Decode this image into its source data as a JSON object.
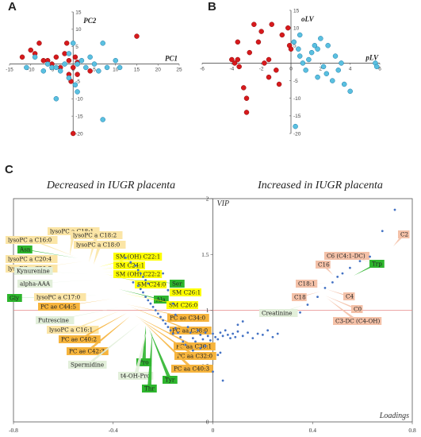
{
  "panels": {
    "a": "A",
    "b": "B",
    "c": "C"
  },
  "colors": {
    "red": "#d7191c",
    "blue": "#5ac0e0",
    "blueStroke": "#1b7aa8",
    "dot": "#4472c4",
    "refline": "#e68a8a",
    "lightyellow": "#fbe5a6",
    "yellow": "#ffff00",
    "orange": "#f6b43d",
    "green": "#2db52d",
    "pale": "#e2efda",
    "salmon": "#f4c1a8"
  },
  "chart_data": [
    {
      "type": "scatter",
      "panel": "A",
      "xlabel": "PC1",
      "ylabel": "PC2",
      "xlim": [
        -15,
        25
      ],
      "ylim": [
        -20,
        15
      ],
      "xticks": [
        -15,
        -10,
        -5,
        0,
        5,
        10,
        15,
        20,
        25
      ],
      "yticks": [
        -20,
        -15,
        -10,
        -5,
        0,
        5,
        10,
        15
      ],
      "series": [
        {
          "color": "red",
          "points": [
            [
              -12,
              2
            ],
            [
              -10,
              4
            ],
            [
              -9,
              3
            ],
            [
              -8,
              6
            ],
            [
              -7,
              1
            ],
            [
              -6,
              1
            ],
            [
              -5,
              0
            ],
            [
              -4,
              2
            ],
            [
              -3,
              -1
            ],
            [
              -2,
              3
            ],
            [
              -1.5,
              6
            ],
            [
              -1,
              1
            ],
            [
              -1,
              -3
            ],
            [
              -0.5,
              -5
            ],
            [
              0,
              -1
            ],
            [
              0,
              -20
            ],
            [
              0.5,
              2
            ],
            [
              1,
              -3
            ],
            [
              1,
              0.5
            ],
            [
              4,
              -2
            ],
            [
              15,
              8
            ]
          ]
        },
        {
          "color": "blue",
          "points": [
            [
              -11,
              -1
            ],
            [
              -9,
              2
            ],
            [
              -7,
              -2
            ],
            [
              -6,
              0
            ],
            [
              -5,
              -1
            ],
            [
              -4,
              -1
            ],
            [
              -3,
              -2
            ],
            [
              -2,
              0
            ],
            [
              -1,
              -4
            ],
            [
              -1,
              3
            ],
            [
              0,
              6
            ],
            [
              0.5,
              -6
            ],
            [
              1,
              -8
            ],
            [
              1,
              0
            ],
            [
              2,
              1
            ],
            [
              3,
              -1
            ],
            [
              4,
              2
            ],
            [
              5,
              0
            ],
            [
              6,
              -2
            ],
            [
              7,
              6
            ],
            [
              7,
              -16
            ],
            [
              8,
              -1
            ],
            [
              10,
              1
            ],
            [
              11,
              -1
            ],
            [
              -4,
              -10
            ]
          ]
        }
      ]
    },
    {
      "type": "scatter",
      "panel": "B",
      "xlabel": "pLV",
      "ylabel": "oLV",
      "xlim": [
        -6,
        6
      ],
      "ylim": [
        -20,
        15
      ],
      "xticks": [
        -6,
        -4,
        -2,
        0,
        2,
        4,
        6
      ],
      "yticks": [
        -20,
        -15,
        -10,
        -5,
        0,
        5,
        10,
        15
      ],
      "series": [
        {
          "color": "red",
          "points": [
            [
              -4,
              1
            ],
            [
              -3.8,
              0
            ],
            [
              -3.6,
              1
            ],
            [
              -3.5,
              -1
            ],
            [
              -3.2,
              -7
            ],
            [
              -3,
              -10
            ],
            [
              -3,
              -14
            ],
            [
              -2.8,
              3
            ],
            [
              -2.5,
              11
            ],
            [
              -2.2,
              6
            ],
            [
              -2,
              9
            ],
            [
              -1.8,
              0
            ],
            [
              -1.5,
              1
            ],
            [
              -1.5,
              -4
            ],
            [
              -1.3,
              11
            ],
            [
              -1,
              -2
            ],
            [
              -0.8,
              -6
            ],
            [
              -0.6,
              8
            ],
            [
              -0.2,
              10
            ],
            [
              -0.1,
              5
            ],
            [
              0,
              4
            ],
            [
              -3.6,
              6
            ]
          ]
        },
        {
          "color": "blue",
          "points": [
            [
              0.2,
              6
            ],
            [
              0.5,
              4
            ],
            [
              0.6,
              2
            ],
            [
              0.8,
              0
            ],
            [
              1,
              -2
            ],
            [
              1.2,
              1
            ],
            [
              1.4,
              3
            ],
            [
              1.6,
              5
            ],
            [
              1.8,
              4
            ],
            [
              1.8,
              -4
            ],
            [
              2,
              7
            ],
            [
              2.2,
              -1
            ],
            [
              2.4,
              -3
            ],
            [
              2.5,
              5
            ],
            [
              2.8,
              -5
            ],
            [
              3,
              2
            ],
            [
              3.2,
              -2
            ],
            [
              3.4,
              0
            ],
            [
              3.6,
              -6
            ],
            [
              4,
              -8
            ],
            [
              5.7,
              0
            ],
            [
              5.8,
              -1
            ],
            [
              0.3,
              -18
            ],
            [
              0.6,
              8
            ]
          ]
        }
      ]
    },
    {
      "type": "scatter",
      "panel": "C",
      "title_left": "Decreased in IUGR placenta",
      "title_right": "Increased in IUGR placenta",
      "xlabel": "Loadings",
      "ylabel": "VIP",
      "xlim": [
        -0.8,
        0.8
      ],
      "ylim": [
        0,
        2
      ],
      "xticks": [
        -0.8,
        -0.4,
        0,
        0.4,
        0.8
      ],
      "xtick_labels": [
        "-0.8",
        "-0.4",
        "0",
        "0.4",
        "0.8"
      ],
      "yticks": [
        0,
        0.5,
        1,
        1.5,
        2
      ],
      "ytick_labels": [
        "0",
        "0.5",
        "1",
        "1.5",
        "2"
      ],
      "threshold": 1,
      "points": [
        [
          -0.35,
          1.47
        ],
        [
          -0.33,
          1.43
        ],
        [
          -0.31,
          1.4
        ],
        [
          -0.3,
          1.36
        ],
        [
          -0.29,
          1.33
        ],
        [
          -0.28,
          1.3
        ],
        [
          -0.27,
          1.27
        ],
        [
          -0.26,
          1.24
        ],
        [
          -0.32,
          1.25
        ],
        [
          -0.3,
          1.22
        ],
        [
          -0.29,
          1.19
        ],
        [
          -0.28,
          1.16
        ],
        [
          -0.27,
          1.12
        ],
        [
          -0.26,
          1.09
        ],
        [
          -0.25,
          1.06
        ],
        [
          -0.24,
          1.03
        ],
        [
          -0.23,
          1.0
        ],
        [
          -0.22,
          0.97
        ],
        [
          -0.21,
          0.94
        ],
        [
          -0.2,
          0.91
        ],
        [
          -0.19,
          0.88
        ],
        [
          -0.18,
          0.85
        ],
        [
          -0.17,
          0.82
        ],
        [
          -0.16,
          0.79
        ],
        [
          -0.15,
          0.84
        ],
        [
          -0.14,
          0.8
        ],
        [
          -0.13,
          0.76
        ],
        [
          -0.12,
          0.72
        ],
        [
          -0.11,
          0.69
        ],
        [
          -0.1,
          0.85
        ],
        [
          -0.09,
          0.8
        ],
        [
          -0.08,
          0.75
        ],
        [
          -0.07,
          0.72
        ],
        [
          -0.06,
          0.82
        ],
        [
          -0.05,
          0.78
        ],
        [
          -0.04,
          0.74
        ],
        [
          -0.03,
          0.8
        ],
        [
          -0.02,
          0.77
        ],
        [
          -0.01,
          0.73
        ],
        [
          0.0,
          0.79
        ],
        [
          0.01,
          0.76
        ],
        [
          0.02,
          0.74
        ],
        [
          0.03,
          0.8
        ],
        [
          0.04,
          0.77
        ],
        [
          0.05,
          0.82
        ],
        [
          0.06,
          0.78
        ],
        [
          0.07,
          0.75
        ],
        [
          0.08,
          0.79
        ],
        [
          0.09,
          0.76
        ],
        [
          0.1,
          0.81
        ],
        [
          0.12,
          0.77
        ],
        [
          0.14,
          0.8
        ],
        [
          0.16,
          0.75
        ],
        [
          0.18,
          0.79
        ],
        [
          0.2,
          0.78
        ],
        [
          0.22,
          0.82
        ],
        [
          0.24,
          0.76
        ],
        [
          0.26,
          0.79
        ],
        [
          0.1,
          0.87
        ],
        [
          0.12,
          0.9
        ],
        [
          -0.2,
          1.33
        ],
        [
          -0.18,
          1.18
        ],
        [
          -0.16,
          1.06
        ],
        [
          -0.15,
          0.96
        ],
        [
          -0.05,
          0.66
        ],
        [
          -0.03,
          0.68
        ],
        [
          0.03,
          0.62
        ],
        [
          0.0,
          0.45
        ],
        [
          0.02,
          0.6
        ],
        [
          -0.08,
          0.64
        ],
        [
          0.35,
          0.98
        ],
        [
          0.38,
          1.05
        ],
        [
          0.42,
          1.12
        ],
        [
          0.45,
          1.2
        ],
        [
          0.48,
          1.25
        ],
        [
          0.5,
          1.3
        ],
        [
          0.52,
          1.33
        ],
        [
          0.55,
          1.38
        ],
        [
          0.59,
          1.44
        ],
        [
          0.63,
          1.48
        ],
        [
          0.68,
          1.71
        ],
        [
          0.73,
          1.9
        ],
        [
          0.04,
          0.37
        ]
      ],
      "labels": [
        {
          "text": "lysoPC a C18:1",
          "color": "lightyellow"
        },
        {
          "text": "lysoPC a C16:0",
          "color": "lightyellow"
        },
        {
          "text": "Asn",
          "color": "green"
        },
        {
          "text": "lysoPC a C20:4",
          "color": "lightyellow"
        },
        {
          "text": "lysoPC a C20:3",
          "color": "lightyellow"
        },
        {
          "text": "lysoPC a C18:2",
          "color": "lightyellow"
        },
        {
          "text": "lysoPC a C18:0",
          "color": "lightyellow"
        },
        {
          "text": "SM (OH) C22:1",
          "color": "yellow"
        },
        {
          "text": "SM C24:1",
          "color": "yellow"
        },
        {
          "text": "SM (OH) C22:2",
          "color": "yellow"
        },
        {
          "text": "SM C24:0",
          "color": "yellow"
        },
        {
          "text": "Ser",
          "color": "green"
        },
        {
          "text": "Kynurenine",
          "color": "pale"
        },
        {
          "text": "alpha-AAA",
          "color": "pale"
        },
        {
          "text": "Ala",
          "color": "green"
        },
        {
          "text": "SM C26:1",
          "color": "yellow"
        },
        {
          "text": "SM C26:0",
          "color": "yellow"
        },
        {
          "text": "Gly",
          "color": "green"
        },
        {
          "text": "lysoPC a C17:0",
          "color": "lightyellow"
        },
        {
          "text": "PC ae C44:5",
          "color": "orange"
        },
        {
          "text": "PC ae C34:0",
          "color": "orange"
        },
        {
          "text": "PC aa C38:0",
          "color": "orange"
        },
        {
          "text": "Putrescine",
          "color": "pale"
        },
        {
          "text": "lysoPC a C16:1",
          "color": "lightyellow"
        },
        {
          "text": "PC aa C36:1",
          "color": "orange"
        },
        {
          "text": "PC ae C40:2",
          "color": "orange"
        },
        {
          "text": "PC aa C32:0",
          "color": "orange"
        },
        {
          "text": "PC ae C42:3",
          "color": "orange"
        },
        {
          "text": "PC aa C40:3",
          "color": "orange"
        },
        {
          "text": "Spermidine",
          "color": "pale"
        },
        {
          "text": "Pro",
          "color": "green"
        },
        {
          "text": "Tyr",
          "color": "green"
        },
        {
          "text": "t4-OH-Pro",
          "color": "pale"
        },
        {
          "text": "Thr",
          "color": "green"
        },
        {
          "text": "C2",
          "color": "salmon"
        },
        {
          "text": "C6 (C4:1-DC)",
          "color": "salmon"
        },
        {
          "text": "C16",
          "color": "salmon"
        },
        {
          "text": "Trp",
          "color": "green"
        },
        {
          "text": "C18:1",
          "color": "salmon"
        },
        {
          "text": "C4",
          "color": "salmon"
        },
        {
          "text": "C18",
          "color": "salmon"
        },
        {
          "text": "C0",
          "color": "salmon"
        },
        {
          "text": "C3-DC (C4-OH)",
          "color": "salmon"
        },
        {
          "text": "Creatinine",
          "color": "pale"
        }
      ]
    }
  ]
}
